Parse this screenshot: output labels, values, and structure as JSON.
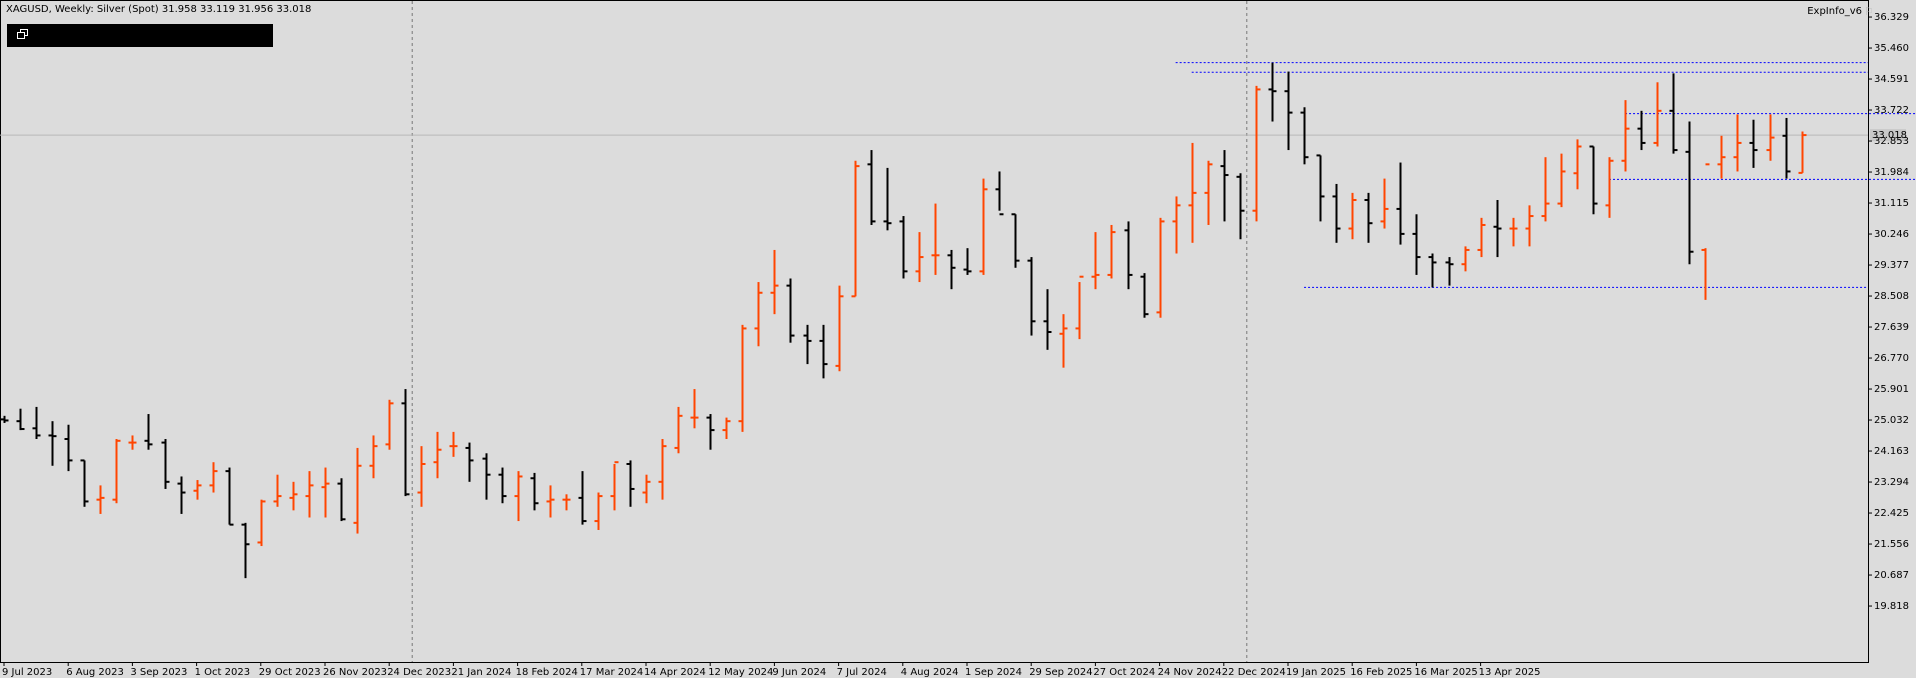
{
  "header": {
    "title": "XAGUSD, Weekly:  Silver (Spot)  31.958 33.119 31.956 33.018"
  },
  "indicator": {
    "label": "ExpInfo_v6",
    "icon": "flag-icon"
  },
  "restore_button": {
    "icon": "restore-window-icon"
  },
  "colors": {
    "background": "#dcdcdc",
    "bull": "#ff4500",
    "bear": "#000000",
    "level": "#0000ff"
  },
  "chart_data": {
    "type": "ohlc",
    "symbol": "XAGUSD",
    "timeframe": "Weekly",
    "ylim": [
      18.95,
      36.33
    ],
    "grid": false,
    "current_price": 33.018,
    "current_price_label": "33.018",
    "y_ticks": [
      "36.329",
      "35.460",
      "34.591",
      "33.722",
      "32.853",
      "31.984",
      "31.115",
      "30.246",
      "29.377",
      "28.508",
      "27.639",
      "26.770",
      "25.901",
      "25.032",
      "24.163",
      "23.294",
      "22.425",
      "21.556",
      "20.687",
      "19.818"
    ],
    "x_labels": [
      "9 Jul 2023",
      "6 Aug 2023",
      "3 Sep 2023",
      "1 Oct 2023",
      "29 Oct 2023",
      "26 Nov 2023",
      "24 Dec 2023",
      "21 Jan 2024",
      "18 Feb 2024",
      "17 Mar 2024",
      "14 Apr 2024",
      "12 May 2024",
      "9 Jun 2024",
      "7 Jul 2024",
      "4 Aug 2024",
      "1 Sep 2024",
      "29 Sep 2024",
      "27 Oct 2024",
      "24 Nov 2024",
      "22 Dec 2024",
      "19 Jan 2025",
      "16 Feb 2025",
      "16 Mar 2025",
      "13 Apr 2025"
    ],
    "period_separators": [
      "24 Dec 2023",
      "22 Dec 2024"
    ],
    "levels": [
      {
        "price": 35.05,
        "from_bar": 73,
        "to_end": true
      },
      {
        "price": 34.78,
        "from_bar": 74,
        "to_end": true
      },
      {
        "price": 33.62,
        "from_bar": 101,
        "to_bar": 125
      },
      {
        "price": 31.78,
        "from_bar": 100,
        "to_bar": 120
      },
      {
        "price": 28.75,
        "from_bar": 81,
        "to_end": true
      }
    ],
    "bars": [
      [
        25.05,
        25.15,
        24.95,
        25.02
      ],
      [
        25.0,
        25.35,
        24.75,
        24.78
      ],
      [
        24.8,
        25.4,
        24.5,
        24.6
      ],
      [
        24.6,
        25.0,
        23.75,
        24.58
      ],
      [
        24.5,
        24.9,
        23.6,
        23.9
      ],
      [
        23.9,
        23.9,
        22.6,
        22.75
      ],
      [
        22.8,
        23.2,
        22.4,
        22.85
      ],
      [
        22.8,
        24.5,
        22.7,
        24.45
      ],
      [
        24.4,
        24.6,
        24.2,
        24.4
      ],
      [
        24.45,
        25.2,
        24.2,
        24.35
      ],
      [
        24.4,
        24.5,
        23.1,
        23.3
      ],
      [
        23.25,
        23.45,
        22.4,
        23.0
      ],
      [
        23.05,
        23.35,
        22.8,
        23.2
      ],
      [
        23.2,
        23.85,
        23.0,
        23.6
      ],
      [
        23.6,
        23.7,
        22.1,
        22.1
      ],
      [
        22.1,
        22.15,
        20.6,
        21.55
      ],
      [
        21.6,
        22.8,
        21.5,
        22.75
      ],
      [
        22.75,
        23.5,
        22.6,
        22.9
      ],
      [
        22.85,
        23.3,
        22.5,
        22.95
      ],
      [
        22.9,
        23.6,
        22.3,
        23.2
      ],
      [
        23.15,
        23.7,
        22.3,
        23.25
      ],
      [
        23.25,
        23.4,
        22.2,
        22.25
      ],
      [
        22.15,
        24.25,
        21.85,
        23.75
      ],
      [
        23.75,
        24.6,
        23.4,
        24.3
      ],
      [
        24.35,
        25.6,
        24.2,
        25.5
      ],
      [
        25.5,
        25.9,
        22.9,
        22.95
      ],
      [
        23.0,
        24.3,
        22.6,
        23.8
      ],
      [
        23.85,
        24.7,
        23.4,
        24.2
      ],
      [
        24.3,
        24.7,
        24.0,
        24.3
      ],
      [
        24.25,
        24.4,
        23.3,
        23.9
      ],
      [
        23.95,
        24.1,
        22.8,
        23.5
      ],
      [
        23.5,
        23.7,
        22.7,
        22.9
      ],
      [
        22.9,
        23.6,
        22.2,
        23.45
      ],
      [
        23.4,
        23.55,
        22.5,
        22.7
      ],
      [
        22.75,
        23.2,
        22.3,
        22.8
      ],
      [
        22.8,
        22.95,
        22.5,
        22.8
      ],
      [
        22.85,
        23.6,
        22.1,
        22.2
      ],
      [
        22.2,
        23.0,
        21.95,
        22.9
      ],
      [
        22.9,
        23.8,
        22.5,
        23.85
      ],
      [
        23.8,
        23.9,
        22.6,
        23.1
      ],
      [
        23.0,
        23.5,
        22.7,
        23.3
      ],
      [
        23.3,
        24.5,
        22.8,
        24.3
      ],
      [
        24.25,
        25.4,
        24.1,
        25.15
      ],
      [
        25.1,
        25.9,
        24.8,
        25.1
      ],
      [
        25.1,
        25.2,
        24.2,
        24.75
      ],
      [
        24.75,
        25.1,
        24.5,
        25.0
      ],
      [
        25.0,
        27.7,
        24.7,
        27.6
      ],
      [
        27.6,
        28.9,
        27.1,
        28.6
      ],
      [
        28.6,
        29.8,
        28.0,
        28.8
      ],
      [
        28.8,
        29.0,
        27.2,
        27.4
      ],
      [
        27.4,
        27.7,
        26.6,
        27.25
      ],
      [
        27.25,
        27.7,
        26.2,
        26.6
      ],
      [
        26.55,
        28.8,
        26.4,
        28.5
      ],
      [
        28.5,
        32.3,
        28.5,
        32.15
      ],
      [
        32.2,
        32.6,
        30.5,
        30.6
      ],
      [
        30.6,
        32.1,
        30.35,
        30.55
      ],
      [
        30.6,
        30.75,
        29.0,
        29.2
      ],
      [
        29.2,
        30.3,
        28.9,
        29.6
      ],
      [
        29.65,
        31.1,
        29.1,
        29.65
      ],
      [
        29.65,
        29.8,
        28.7,
        29.3
      ],
      [
        29.25,
        29.85,
        29.1,
        29.2
      ],
      [
        29.2,
        31.8,
        29.1,
        31.5
      ],
      [
        31.5,
        32.0,
        30.9,
        30.8
      ],
      [
        30.8,
        30.8,
        29.3,
        29.5
      ],
      [
        29.5,
        29.6,
        27.4,
        27.8
      ],
      [
        27.8,
        28.7,
        27.0,
        27.5
      ],
      [
        27.45,
        28.0,
        26.5,
        27.6
      ],
      [
        27.6,
        28.9,
        27.3,
        29.05
      ],
      [
        29.05,
        30.3,
        28.7,
        29.1
      ],
      [
        29.1,
        30.5,
        29.0,
        30.3
      ],
      [
        30.35,
        30.6,
        28.7,
        29.1
      ],
      [
        29.05,
        29.15,
        27.9,
        28.0
      ],
      [
        28.05,
        30.7,
        27.9,
        30.6
      ],
      [
        30.6,
        31.3,
        29.7,
        31.05
      ],
      [
        31.05,
        32.8,
        30.0,
        31.4
      ],
      [
        31.4,
        32.3,
        30.5,
        32.2
      ],
      [
        32.15,
        32.6,
        30.6,
        31.9
      ],
      [
        31.85,
        31.95,
        30.1,
        30.9
      ],
      [
        30.9,
        34.4,
        30.6,
        34.3
      ],
      [
        34.3,
        35.05,
        33.4,
        34.25
      ],
      [
        34.25,
        34.8,
        32.6,
        33.65
      ],
      [
        33.65,
        33.8,
        32.2,
        32.4
      ],
      [
        32.45,
        32.45,
        30.6,
        31.3
      ],
      [
        31.3,
        31.65,
        30.0,
        30.4
      ],
      [
        30.4,
        31.4,
        30.1,
        31.2
      ],
      [
        31.2,
        31.4,
        30.0,
        30.55
      ],
      [
        30.6,
        31.8,
        30.4,
        30.95
      ],
      [
        30.95,
        32.25,
        29.95,
        30.25
      ],
      [
        30.25,
        30.8,
        29.1,
        29.6
      ],
      [
        29.6,
        29.7,
        28.75,
        29.45
      ],
      [
        29.45,
        29.6,
        28.8,
        29.4
      ],
      [
        29.4,
        29.9,
        29.2,
        29.8
      ],
      [
        29.8,
        30.7,
        29.6,
        30.5
      ],
      [
        30.45,
        31.2,
        29.6,
        30.4
      ],
      [
        30.4,
        30.7,
        29.9,
        30.4
      ],
      [
        30.4,
        31.05,
        29.9,
        30.75
      ],
      [
        30.75,
        32.4,
        30.6,
        31.1
      ],
      [
        31.1,
        32.5,
        31.0,
        32.0
      ],
      [
        31.95,
        32.9,
        31.5,
        32.7
      ],
      [
        32.7,
        32.7,
        30.8,
        31.1
      ],
      [
        31.05,
        32.4,
        30.7,
        32.3
      ],
      [
        32.3,
        34.0,
        32.0,
        33.2
      ],
      [
        33.2,
        33.7,
        32.6,
        32.8
      ],
      [
        32.8,
        34.5,
        32.7,
        33.7
      ],
      [
        33.7,
        34.75,
        32.5,
        32.6
      ],
      [
        32.55,
        33.4,
        29.4,
        29.75
      ],
      [
        29.8,
        29.85,
        28.4,
        32.2
      ],
      [
        32.2,
        33.0,
        31.8,
        32.4
      ],
      [
        32.4,
        33.6,
        32.0,
        32.8
      ],
      [
        32.8,
        33.45,
        32.1,
        32.6
      ],
      [
        32.6,
        33.6,
        32.3,
        32.95
      ],
      [
        33.0,
        33.5,
        31.8,
        32.0
      ],
      [
        31.96,
        33.12,
        31.96,
        33.02
      ]
    ]
  }
}
